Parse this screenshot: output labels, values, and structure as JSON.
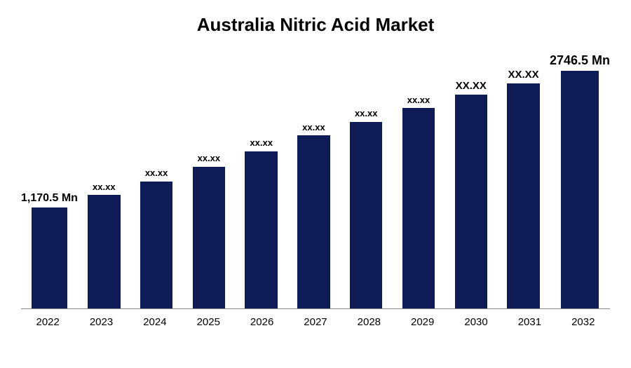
{
  "chart": {
    "type": "bar",
    "title": "Australia Nitric Acid Market",
    "title_fontsize": 26,
    "title_fontweight": 700,
    "title_color": "#000000",
    "background_color": "#ffffff",
    "bar_color": "#0d1b56",
    "axis_line_color": "#888888",
    "x_label_fontsize": 15,
    "x_label_color": "#000000",
    "bar_label_color": "#000000",
    "bar_width": 0.62,
    "ylim": [
      0,
      3000
    ],
    "categories": [
      "2022",
      "2023",
      "2024",
      "2025",
      "2026",
      "2027",
      "2028",
      "2029",
      "2030",
      "2031",
      "2032"
    ],
    "values": [
      1170.5,
      1310,
      1470,
      1640,
      1820,
      2000,
      2160,
      2320,
      2470,
      2600,
      2746.5
    ],
    "value_labels": [
      "1,170.5 Mn",
      "xx.xx",
      "xx.xx",
      "xx.xx",
      "xx.xx",
      "xx.xx",
      "xx.xx",
      "xx.xx",
      "XX.XX",
      "XX.XX",
      "2746.5 Mn"
    ],
    "value_label_fontsizes": [
      16,
      13,
      13,
      13,
      13,
      13,
      13,
      13,
      15,
      15,
      18
    ]
  }
}
